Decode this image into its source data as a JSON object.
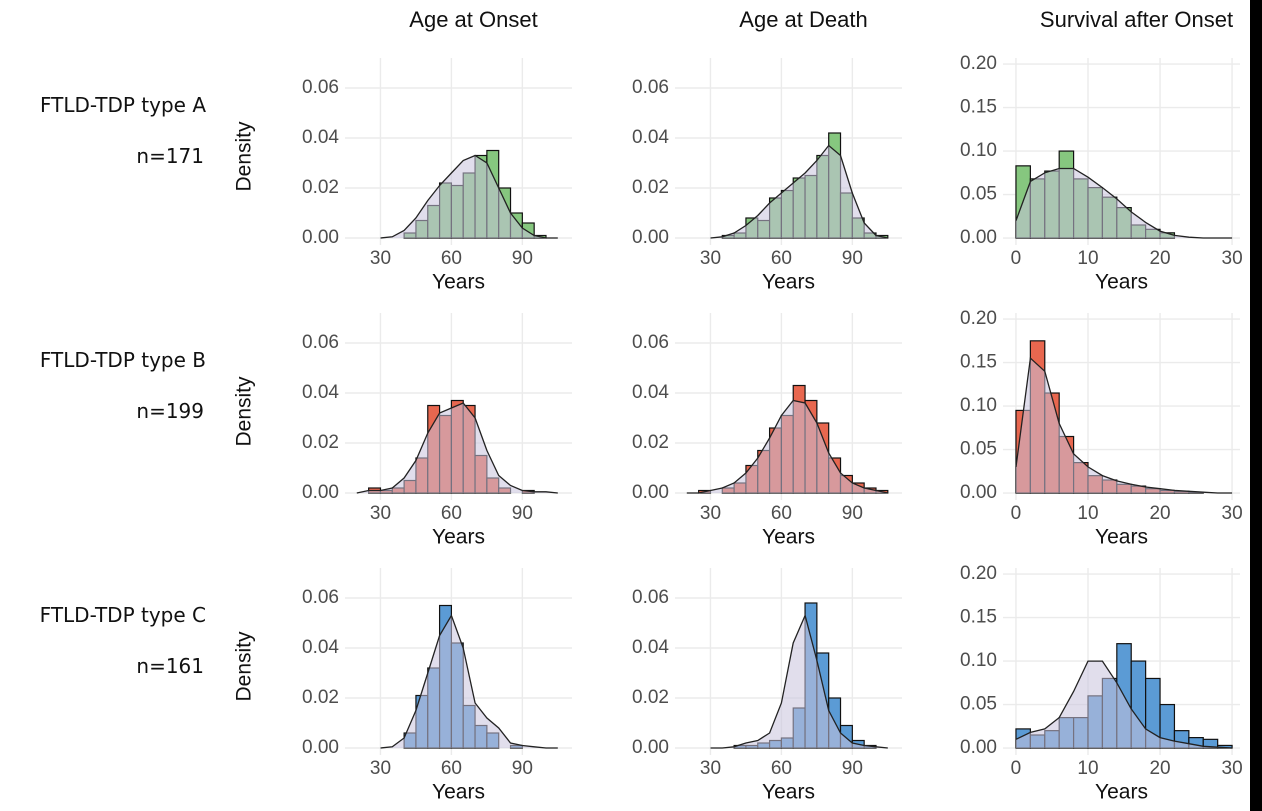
{
  "chart_data": [
    {
      "type": "histogram",
      "title": "Age at Onset",
      "row_label": "FTLD-TDP type A",
      "row_n": "n=171",
      "x_label": "Years",
      "y_label": "Density",
      "color": "#86c77f",
      "area_color": "#c8c3dc",
      "bins": [
        40,
        45,
        50,
        55,
        60,
        65,
        70,
        75,
        80,
        85,
        90,
        95,
        100
      ],
      "values": [
        0.002,
        0.007,
        0.013,
        0.022,
        0.021,
        0.026,
        0.033,
        0.035,
        0.02,
        0.01,
        0.006,
        0.001
      ],
      "density": {
        "x": [
          30,
          35,
          40,
          45,
          50,
          55,
          60,
          65,
          70,
          75,
          80,
          85,
          90,
          95,
          100,
          105
        ],
        "values": [
          0,
          0.0005,
          0.003,
          0.008,
          0.015,
          0.021,
          0.026,
          0.031,
          0.033,
          0.03,
          0.02,
          0.01,
          0.004,
          0.001,
          0,
          0
        ]
      },
      "xlim": [
        15,
        111
      ],
      "ylim": [
        -0.0028,
        0.072
      ],
      "xticks": [
        30,
        60,
        90
      ],
      "yticks": [
        {
          "value": 0,
          "label": "0.00"
        },
        {
          "value": 0.02,
          "label": "0.02"
        },
        {
          "value": 0.04,
          "label": "0.04"
        },
        {
          "value": 0.06,
          "label": "0.06"
        }
      ],
      "grid": true
    },
    {
      "type": "histogram",
      "title": "Age at Death",
      "x_label": "Years",
      "color": "#86c77f",
      "area_color": "#c8c3dc",
      "bins": [
        35,
        40,
        45,
        50,
        55,
        60,
        65,
        70,
        75,
        80,
        85,
        90,
        95,
        100,
        105
      ],
      "values": [
        0.001,
        0.002,
        0.008,
        0.007,
        0.016,
        0.019,
        0.024,
        0.025,
        0.033,
        0.042,
        0.018,
        0.008,
        0.002,
        0.001
      ],
      "density": {
        "x": [
          30,
          35,
          40,
          45,
          50,
          55,
          60,
          65,
          70,
          75,
          80,
          85,
          90,
          95,
          100,
          105
        ],
        "values": [
          0,
          0.0005,
          0.002,
          0.005,
          0.009,
          0.014,
          0.018,
          0.022,
          0.026,
          0.031,
          0.037,
          0.033,
          0.018,
          0.006,
          0.001,
          0
        ]
      },
      "xlim": [
        15,
        111
      ],
      "ylim": [
        -0.0028,
        0.072
      ],
      "xticks": [
        30,
        60,
        90
      ],
      "yticks": [
        {
          "value": 0,
          "label": "0.00"
        },
        {
          "value": 0.02,
          "label": "0.02"
        },
        {
          "value": 0.04,
          "label": "0.04"
        },
        {
          "value": 0.06,
          "label": "0.06"
        }
      ],
      "grid": true
    },
    {
      "type": "histogram",
      "title": "Survival after Onset",
      "x_label": "Years",
      "color": "#86c77f",
      "area_color": "#c8c3dc",
      "bins": [
        0,
        2,
        4,
        6,
        8,
        10,
        12,
        14,
        16,
        18,
        20,
        22
      ],
      "values": [
        0.083,
        0.068,
        0.077,
        0.1,
        0.068,
        0.058,
        0.047,
        0.035,
        0.015,
        0.01,
        0.006
      ],
      "density": {
        "x": [
          0,
          2,
          4,
          6,
          8,
          10,
          12,
          14,
          16,
          18,
          20,
          22,
          24,
          26,
          28,
          30
        ],
        "values": [
          0.02,
          0.065,
          0.075,
          0.08,
          0.08,
          0.07,
          0.058,
          0.045,
          0.03,
          0.018,
          0.008,
          0.003,
          0.001,
          0,
          0,
          0
        ]
      },
      "xlim": [
        -1.8,
        31.1
      ],
      "ylim": [
        -0.008,
        0.207
      ],
      "xticks": [
        0,
        10,
        20,
        30
      ],
      "yticks": [
        {
          "value": 0,
          "label": "0.00"
        },
        {
          "value": 0.05,
          "label": "0.05"
        },
        {
          "value": 0.1,
          "label": "0.10"
        },
        {
          "value": 0.15,
          "label": "0.15"
        },
        {
          "value": 0.2,
          "label": "0.20"
        }
      ],
      "grid": true
    },
    {
      "type": "histogram",
      "row_label": "FTLD-TDP type B",
      "row_n": "n=199",
      "x_label": "Years",
      "y_label": "Density",
      "color": "#e8674f",
      "area_color": "#c8c3dc",
      "bins": [
        25,
        30,
        35,
        40,
        45,
        50,
        55,
        60,
        65,
        70,
        75,
        80,
        85,
        90,
        95,
        100,
        105
      ],
      "values": [
        0.002,
        0.001,
        0.002,
        0.005,
        0.014,
        0.035,
        0.031,
        0.037,
        0.035,
        0.015,
        0.006,
        0.002,
        0,
        0.001,
        0,
        0
      ],
      "density": {
        "x": [
          20,
          25,
          30,
          35,
          40,
          45,
          50,
          55,
          60,
          65,
          70,
          75,
          80,
          85,
          90,
          95,
          100,
          105
        ],
        "values": [
          0,
          0.001,
          0.001,
          0.002,
          0.006,
          0.013,
          0.024,
          0.032,
          0.034,
          0.036,
          0.03,
          0.017,
          0.007,
          0.003,
          0.001,
          0.0005,
          0.0005,
          0
        ]
      },
      "xlim": [
        15,
        111
      ],
      "ylim": [
        -0.0028,
        0.072
      ],
      "xticks": [
        30,
        60,
        90
      ],
      "yticks": [
        {
          "value": 0,
          "label": "0.00"
        },
        {
          "value": 0.02,
          "label": "0.02"
        },
        {
          "value": 0.04,
          "label": "0.04"
        },
        {
          "value": 0.06,
          "label": "0.06"
        }
      ],
      "grid": true
    },
    {
      "type": "histogram",
      "x_label": "Years",
      "color": "#e8674f",
      "area_color": "#c8c3dc",
      "bins": [
        25,
        30,
        35,
        40,
        45,
        50,
        55,
        60,
        65,
        70,
        75,
        80,
        85,
        90,
        95,
        100,
        105
      ],
      "values": [
        0.001,
        0,
        0.002,
        0.004,
        0.011,
        0.017,
        0.026,
        0.031,
        0.043,
        0.037,
        0.028,
        0.014,
        0.007,
        0.004,
        0.002,
        0.001
      ],
      "density": {
        "x": [
          20,
          25,
          30,
          35,
          40,
          45,
          50,
          55,
          60,
          65,
          70,
          75,
          80,
          85,
          90,
          95,
          100,
          105
        ],
        "values": [
          0,
          0,
          0.001,
          0.002,
          0.004,
          0.008,
          0.014,
          0.022,
          0.031,
          0.037,
          0.036,
          0.028,
          0.016,
          0.008,
          0.004,
          0.002,
          0.001,
          0
        ]
      },
      "xlim": [
        15,
        111
      ],
      "ylim": [
        -0.0028,
        0.072
      ],
      "xticks": [
        30,
        60,
        90
      ],
      "yticks": [
        {
          "value": 0,
          "label": "0.00"
        },
        {
          "value": 0.02,
          "label": "0.02"
        },
        {
          "value": 0.04,
          "label": "0.04"
        },
        {
          "value": 0.06,
          "label": "0.06"
        }
      ],
      "grid": true
    },
    {
      "type": "histogram",
      "x_label": "Years",
      "color": "#e8674f",
      "area_color": "#c8c3dc",
      "bins": [
        0,
        2,
        4,
        6,
        8,
        10,
        12,
        14,
        16,
        18,
        20,
        22,
        24,
        26
      ],
      "values": [
        0.095,
        0.175,
        0.115,
        0.065,
        0.035,
        0.02,
        0.015,
        0.01,
        0.008,
        0.005,
        0.003,
        0.002,
        0.001
      ],
      "density": {
        "x": [
          0,
          2,
          4,
          6,
          8,
          10,
          12,
          14,
          16,
          18,
          20,
          22,
          24,
          26,
          28,
          30
        ],
        "values": [
          0.03,
          0.155,
          0.14,
          0.08,
          0.045,
          0.03,
          0.02,
          0.014,
          0.01,
          0.007,
          0.005,
          0.003,
          0.002,
          0.001,
          0,
          0
        ]
      },
      "xlim": [
        -1.8,
        31.1
      ],
      "ylim": [
        -0.008,
        0.207
      ],
      "xticks": [
        0,
        10,
        20,
        30
      ],
      "yticks": [
        {
          "value": 0,
          "label": "0.00"
        },
        {
          "value": 0.05,
          "label": "0.05"
        },
        {
          "value": 0.1,
          "label": "0.10"
        },
        {
          "value": 0.15,
          "label": "0.15"
        },
        {
          "value": 0.2,
          "label": "0.20"
        }
      ],
      "grid": true
    },
    {
      "type": "histogram",
      "row_label": "FTLD-TDP type C",
      "row_n": "n=161",
      "x_label": "Years",
      "y_label": "Density",
      "color": "#5b9bd5",
      "area_color": "#c8c3dc",
      "bins": [
        40,
        45,
        50,
        55,
        60,
        65,
        70,
        75,
        80,
        85,
        90,
        95,
        100
      ],
      "values": [
        0.006,
        0.021,
        0.032,
        0.057,
        0.042,
        0.017,
        0.009,
        0.006,
        0,
        0.001,
        0,
        0
      ],
      "density": {
        "x": [
          30,
          35,
          40,
          45,
          50,
          55,
          60,
          65,
          70,
          75,
          80,
          85,
          90,
          95,
          100,
          105
        ],
        "values": [
          0,
          0.0005,
          0.004,
          0.015,
          0.03,
          0.045,
          0.053,
          0.04,
          0.018,
          0.012,
          0.008,
          0.002,
          0.001,
          0.0005,
          0,
          0
        ]
      },
      "xlim": [
        15,
        111
      ],
      "ylim": [
        -0.0028,
        0.072
      ],
      "xticks": [
        30,
        60,
        90
      ],
      "yticks": [
        {
          "value": 0,
          "label": "0.00"
        },
        {
          "value": 0.02,
          "label": "0.02"
        },
        {
          "value": 0.04,
          "label": "0.04"
        },
        {
          "value": 0.06,
          "label": "0.06"
        }
      ],
      "grid": true
    },
    {
      "type": "histogram",
      "x_label": "Years",
      "color": "#5b9bd5",
      "area_color": "#c8c3dc",
      "bins": [
        40,
        45,
        50,
        55,
        60,
        65,
        70,
        75,
        80,
        85,
        90,
        95,
        100
      ],
      "values": [
        0.001,
        0.001,
        0.002,
        0.003,
        0.004,
        0.016,
        0.058,
        0.038,
        0.02,
        0.009,
        0.003,
        0.001
      ],
      "density": {
        "x": [
          30,
          35,
          40,
          45,
          50,
          55,
          60,
          65,
          70,
          75,
          80,
          85,
          90,
          95,
          100,
          105
        ],
        "values": [
          0,
          0,
          0.0005,
          0.002,
          0.003,
          0.006,
          0.018,
          0.042,
          0.053,
          0.035,
          0.015,
          0.006,
          0.002,
          0.001,
          0.0005,
          0
        ]
      },
      "xlim": [
        15,
        111
      ],
      "ylim": [
        -0.0028,
        0.072
      ],
      "xticks": [
        30,
        60,
        90
      ],
      "yticks": [
        {
          "value": 0,
          "label": "0.00"
        },
        {
          "value": 0.02,
          "label": "0.02"
        },
        {
          "value": 0.04,
          "label": "0.04"
        },
        {
          "value": 0.06,
          "label": "0.06"
        }
      ],
      "grid": true
    },
    {
      "type": "histogram",
      "x_label": "Years",
      "color": "#5b9bd5",
      "area_color": "#c8c3dc",
      "bins": [
        0,
        2,
        4,
        6,
        8,
        10,
        12,
        14,
        16,
        18,
        20,
        22,
        24,
        26,
        28,
        30
      ],
      "values": [
        0.022,
        0.015,
        0.02,
        0.035,
        0.035,
        0.06,
        0.08,
        0.12,
        0.1,
        0.08,
        0.05,
        0.02,
        0.012,
        0.01,
        0.003
      ],
      "density": {
        "x": [
          0,
          2,
          4,
          6,
          8,
          10,
          12,
          14,
          16,
          18,
          20,
          22,
          24,
          26,
          28,
          30
        ],
        "values": [
          0.01,
          0.018,
          0.022,
          0.035,
          0.065,
          0.1,
          0.1,
          0.075,
          0.045,
          0.022,
          0.012,
          0.008,
          0.005,
          0.002,
          0.001,
          0
        ]
      },
      "xlim": [
        -1.8,
        31.1
      ],
      "ylim": [
        -0.008,
        0.207
      ],
      "xticks": [
        0,
        10,
        20,
        30
      ],
      "yticks": [
        {
          "value": 0,
          "label": "0.00"
        },
        {
          "value": 0.05,
          "label": "0.05"
        },
        {
          "value": 0.1,
          "label": "0.10"
        },
        {
          "value": 0.15,
          "label": "0.15"
        },
        {
          "value": 0.2,
          "label": "0.20"
        }
      ],
      "grid": true
    }
  ]
}
